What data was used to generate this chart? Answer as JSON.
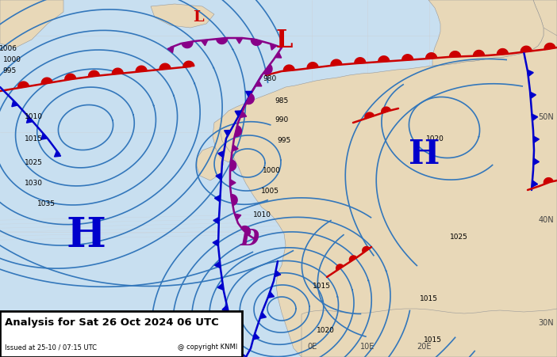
{
  "title_main": "Analysis for Sat 26 Oct 2024 06 UTC",
  "title_sub": "Issued at 25-10 / 07:15 UTC",
  "copyright": "@ copyright KNMI",
  "bg_ocean": "#c8dff0",
  "bg_land": "#e8d8b8",
  "isobar_color": "#3377bb",
  "warm_front_color": "#cc0000",
  "cold_front_color": "#0000cc",
  "occlusion_color": "#880088",
  "H_color": "#0000cc",
  "L_color": "#cc0000",
  "D_color": "#880088"
}
